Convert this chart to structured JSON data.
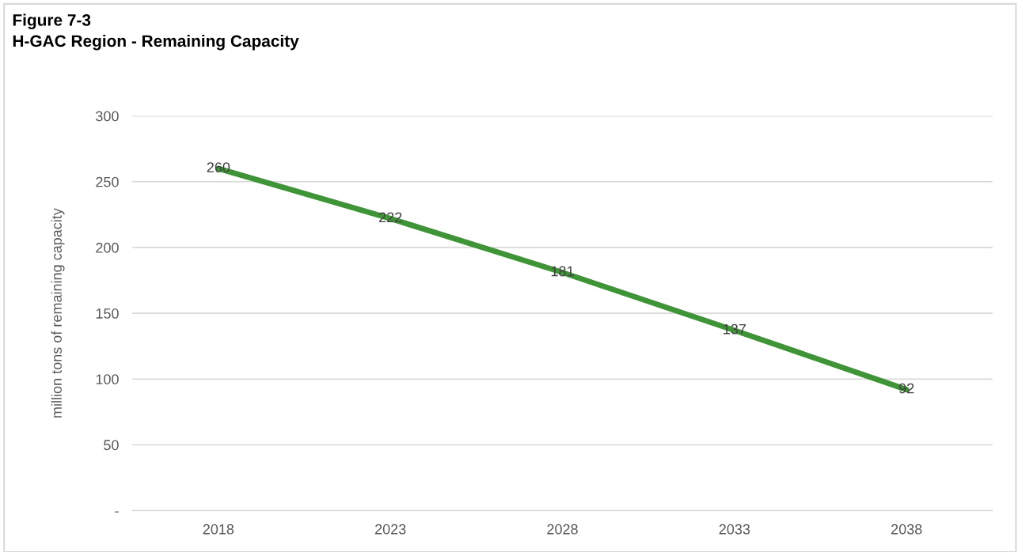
{
  "chart_data": {
    "type": "line",
    "title": "Figure 7-3",
    "subtitle": "H-GAC Region - Remaining Capacity",
    "ylabel": "million tons of remaining capacity",
    "categories": [
      "2018",
      "2023",
      "2028",
      "2033",
      "2038"
    ],
    "series": [
      {
        "color": "#3f9437",
        "values": [
          260,
          222,
          181,
          137,
          92
        ]
      }
    ],
    "ylim": [
      0,
      300
    ],
    "yticks": [
      {
        "value": 0,
        "label": "-"
      },
      50,
      100,
      150,
      200,
      250,
      300
    ],
    "grid": "y",
    "data_labels": true,
    "marker": "none",
    "line_style": "solid"
  }
}
